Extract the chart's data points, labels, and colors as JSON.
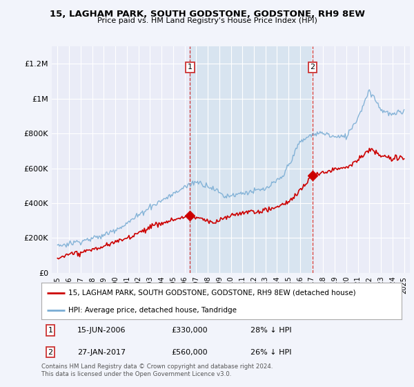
{
  "title": "15, LAGHAM PARK, SOUTH GODSTONE, GODSTONE, RH9 8EW",
  "subtitle": "Price paid vs. HM Land Registry's House Price Index (HPI)",
  "legend_label_red": "15, LAGHAM PARK, SOUTH GODSTONE, GODSTONE, RH9 8EW (detached house)",
  "legend_label_blue": "HPI: Average price, detached house, Tandridge",
  "annotation1_date": "15-JUN-2006",
  "annotation1_price": "£330,000",
  "annotation1_hpi": "28% ↓ HPI",
  "annotation2_date": "27-JAN-2017",
  "annotation2_price": "£560,000",
  "annotation2_hpi": "26% ↓ HPI",
  "footer": "Contains HM Land Registry data © Crown copyright and database right 2024.\nThis data is licensed under the Open Government Licence v3.0.",
  "red_color": "#cc0000",
  "blue_color": "#7aadd4",
  "vline_color": "#cc3333",
  "bg_color": "#f2f4fb",
  "plot_bg": "#eaecf7",
  "span_color": "#d8e4f0",
  "vline1_x": 2006.46,
  "vline2_x": 2017.07,
  "marker1_x": 2006.46,
  "marker1_y": 330000,
  "marker2_x": 2017.07,
  "marker2_y": 560000,
  "ylim": [
    0,
    1300000
  ],
  "xlim": [
    1994.5,
    2025.5
  ]
}
